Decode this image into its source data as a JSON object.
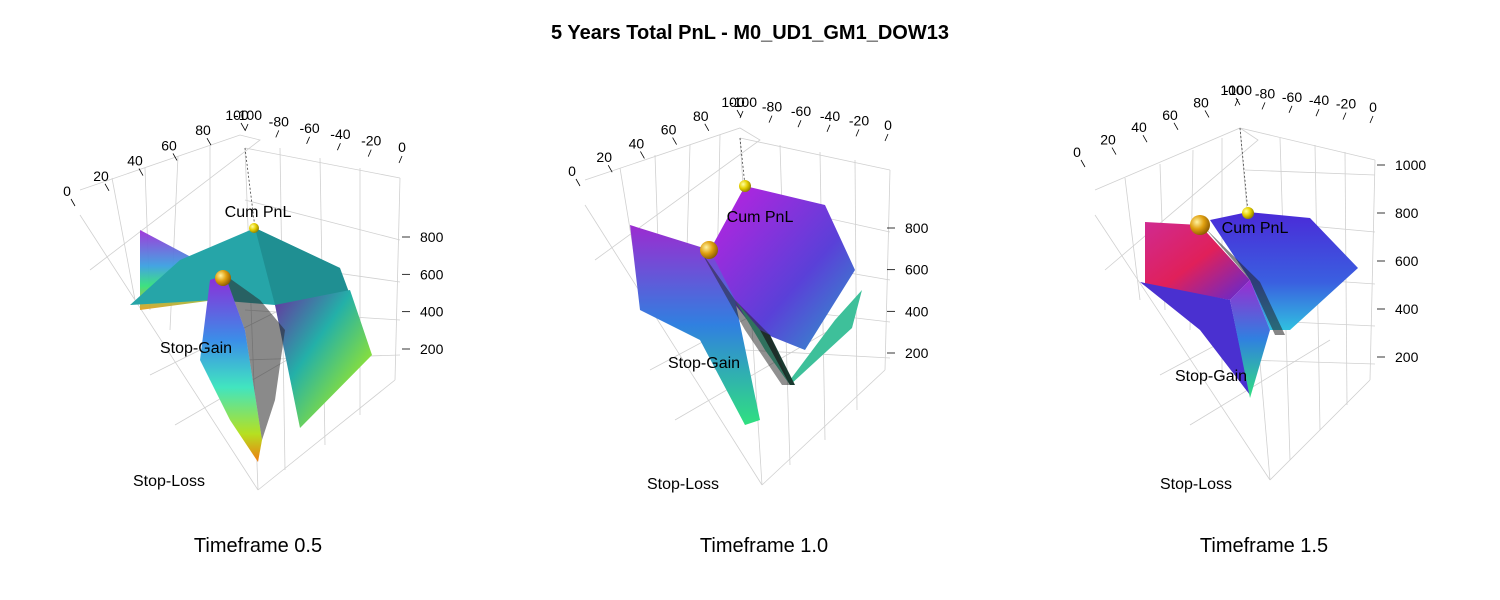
{
  "title": "5 Years Total PnL - M0_UD1_GM1_DOW13",
  "chart_data": [
    {
      "type": "surface3d",
      "caption": "Timeframe 0.5",
      "xlabel": "Stop-Gain",
      "ylabel": "Stop-Loss",
      "zlabel": "Cum PnL",
      "stop_gain_ticks": [
        "0",
        "20",
        "40",
        "60",
        "80",
        "100"
      ],
      "stop_loss_ticks": [
        "-100",
        "-80",
        "-60",
        "-40",
        "-20",
        "0"
      ],
      "z_ticks": [
        "200",
        "400",
        "600",
        "800"
      ],
      "zlim": [
        100,
        950
      ],
      "highlight_points": [
        {
          "stop_gain": 100,
          "stop_loss": 0,
          "pnl": 830
        },
        {
          "stop_gain": 40,
          "stop_loss": -60,
          "pnl": 640
        }
      ]
    },
    {
      "type": "surface3d",
      "caption": "Timeframe 1.0",
      "xlabel": "Stop-Gain",
      "ylabel": "Stop-Loss",
      "zlabel": "Cum PnL",
      "stop_gain_ticks": [
        "0",
        "20",
        "40",
        "60",
        "80",
        "100"
      ],
      "stop_loss_ticks": [
        "-100",
        "-80",
        "-60",
        "-40",
        "-20",
        "0"
      ],
      "z_ticks": [
        "200",
        "400",
        "600",
        "800"
      ],
      "zlim": [
        100,
        950
      ],
      "highlight_points": [
        {
          "stop_gain": 100,
          "stop_loss": 0,
          "pnl": 920
        },
        {
          "stop_gain": 40,
          "stop_loss": -60,
          "pnl": 760
        }
      ]
    },
    {
      "type": "surface3d",
      "caption": "Timeframe 1.5",
      "xlabel": "Stop-Gain",
      "ylabel": "Stop-Loss",
      "zlabel": "Cum PnL",
      "stop_gain_ticks": [
        "0",
        "20",
        "40",
        "60",
        "80",
        "100"
      ],
      "stop_loss_ticks": [
        "-100",
        "-80",
        "-60",
        "-40",
        "-20",
        "0"
      ],
      "z_ticks": [
        "200",
        "400",
        "600",
        "800",
        "1000"
      ],
      "zlim": [
        100,
        1050
      ],
      "highlight_points": [
        {
          "stop_gain": 100,
          "stop_loss": 0,
          "pnl": 860
        },
        {
          "stop_gain": 60,
          "stop_loss": -80,
          "pnl": 830
        }
      ]
    }
  ]
}
